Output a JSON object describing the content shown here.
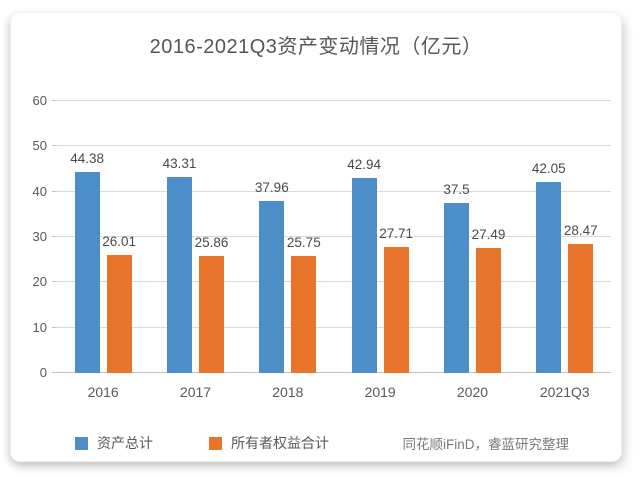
{
  "chart_data": {
    "type": "bar",
    "title": "2016-2021Q3资产变动情况（亿元）",
    "categories": [
      "2016",
      "2017",
      "2018",
      "2019",
      "2020",
      "2021Q3"
    ],
    "series": [
      {
        "name": "资产总计",
        "color": "#4d8dc8",
        "values": [
          44.38,
          43.31,
          37.96,
          42.94,
          37.5,
          42.05
        ]
      },
      {
        "name": "所有者权益合计",
        "color": "#e8752c",
        "values": [
          26.01,
          25.86,
          25.75,
          27.71,
          27.49,
          28.47
        ]
      }
    ],
    "ylim": [
      0,
      60
    ],
    "ytick_step": 10,
    "yticks": [
      0,
      10,
      20,
      30,
      40,
      50,
      60
    ],
    "grid": true,
    "gridline_color": "#d9d9d9",
    "axis_line_color": "#bfbfbf",
    "data_labels": true,
    "legend_position": "bottom",
    "source_note": "同花顺iFinD，睿蓝研究整理"
  }
}
